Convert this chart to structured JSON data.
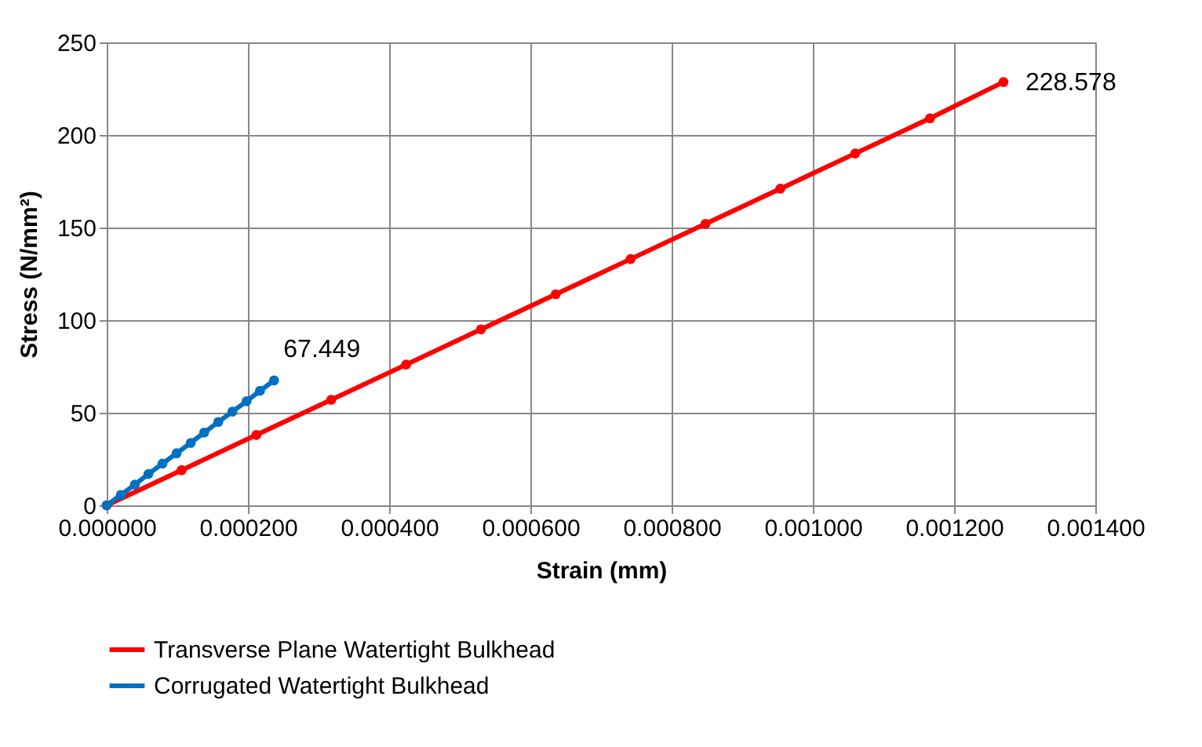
{
  "chart_data": {
    "type": "line",
    "xlabel": "Strain (mm)",
    "ylabel": "Stress (N/mm²)",
    "xlim": [
      0,
      0.0014
    ],
    "xticks": [
      {
        "value": 0,
        "label": "0.000000"
      },
      {
        "value": 0.0002,
        "label": "0.000200"
      },
      {
        "value": 0.0004,
        "label": "0.000400"
      },
      {
        "value": 0.0006,
        "label": "0.000600"
      },
      {
        "value": 0.0008,
        "label": "0.000800"
      },
      {
        "value": 0.001,
        "label": "0.001000"
      },
      {
        "value": 0.0012,
        "label": "0.001200"
      },
      {
        "value": 0.0014,
        "label": "0.001400"
      }
    ],
    "ylim": [
      0,
      250
    ],
    "yticks": [
      0,
      50,
      100,
      150,
      200,
      250
    ],
    "series": [
      {
        "name": "Transverse Plane Watertight Bulkhead",
        "color": "#ff0000",
        "x": [
          0,
          0.000106,
          0.000212,
          0.000318,
          0.000424,
          0.00053,
          0.000636,
          0.000742,
          0.000848,
          0.000954,
          0.00106,
          0.001166,
          0.00127
        ],
        "values": [
          0,
          19,
          38,
          57,
          76,
          95,
          114,
          133,
          152,
          171,
          190,
          209,
          228.578
        ]
      },
      {
        "name": "Corrugated Watertight Bulkhead",
        "color": "#0070c0",
        "x": [
          0,
          2e-05,
          4e-05,
          5.9e-05,
          7.9e-05,
          9.9e-05,
          0.000119,
          0.000138,
          0.000158,
          0.000178,
          0.000198,
          0.000217,
          0.000237
        ],
        "values": [
          0,
          5.6,
          11.2,
          16.9,
          22.5,
          28.1,
          33.7,
          39.3,
          45.0,
          50.6,
          56.2,
          61.8,
          67.449
        ]
      }
    ],
    "annotations": [
      {
        "text": "67.449",
        "x": 0.000237,
        "y": 67.449
      },
      {
        "text": "228.578",
        "x": 0.00127,
        "y": 228.578
      }
    ],
    "grid": true,
    "legend": "bottom",
    "marker": "circle",
    "line_style": "solid"
  }
}
